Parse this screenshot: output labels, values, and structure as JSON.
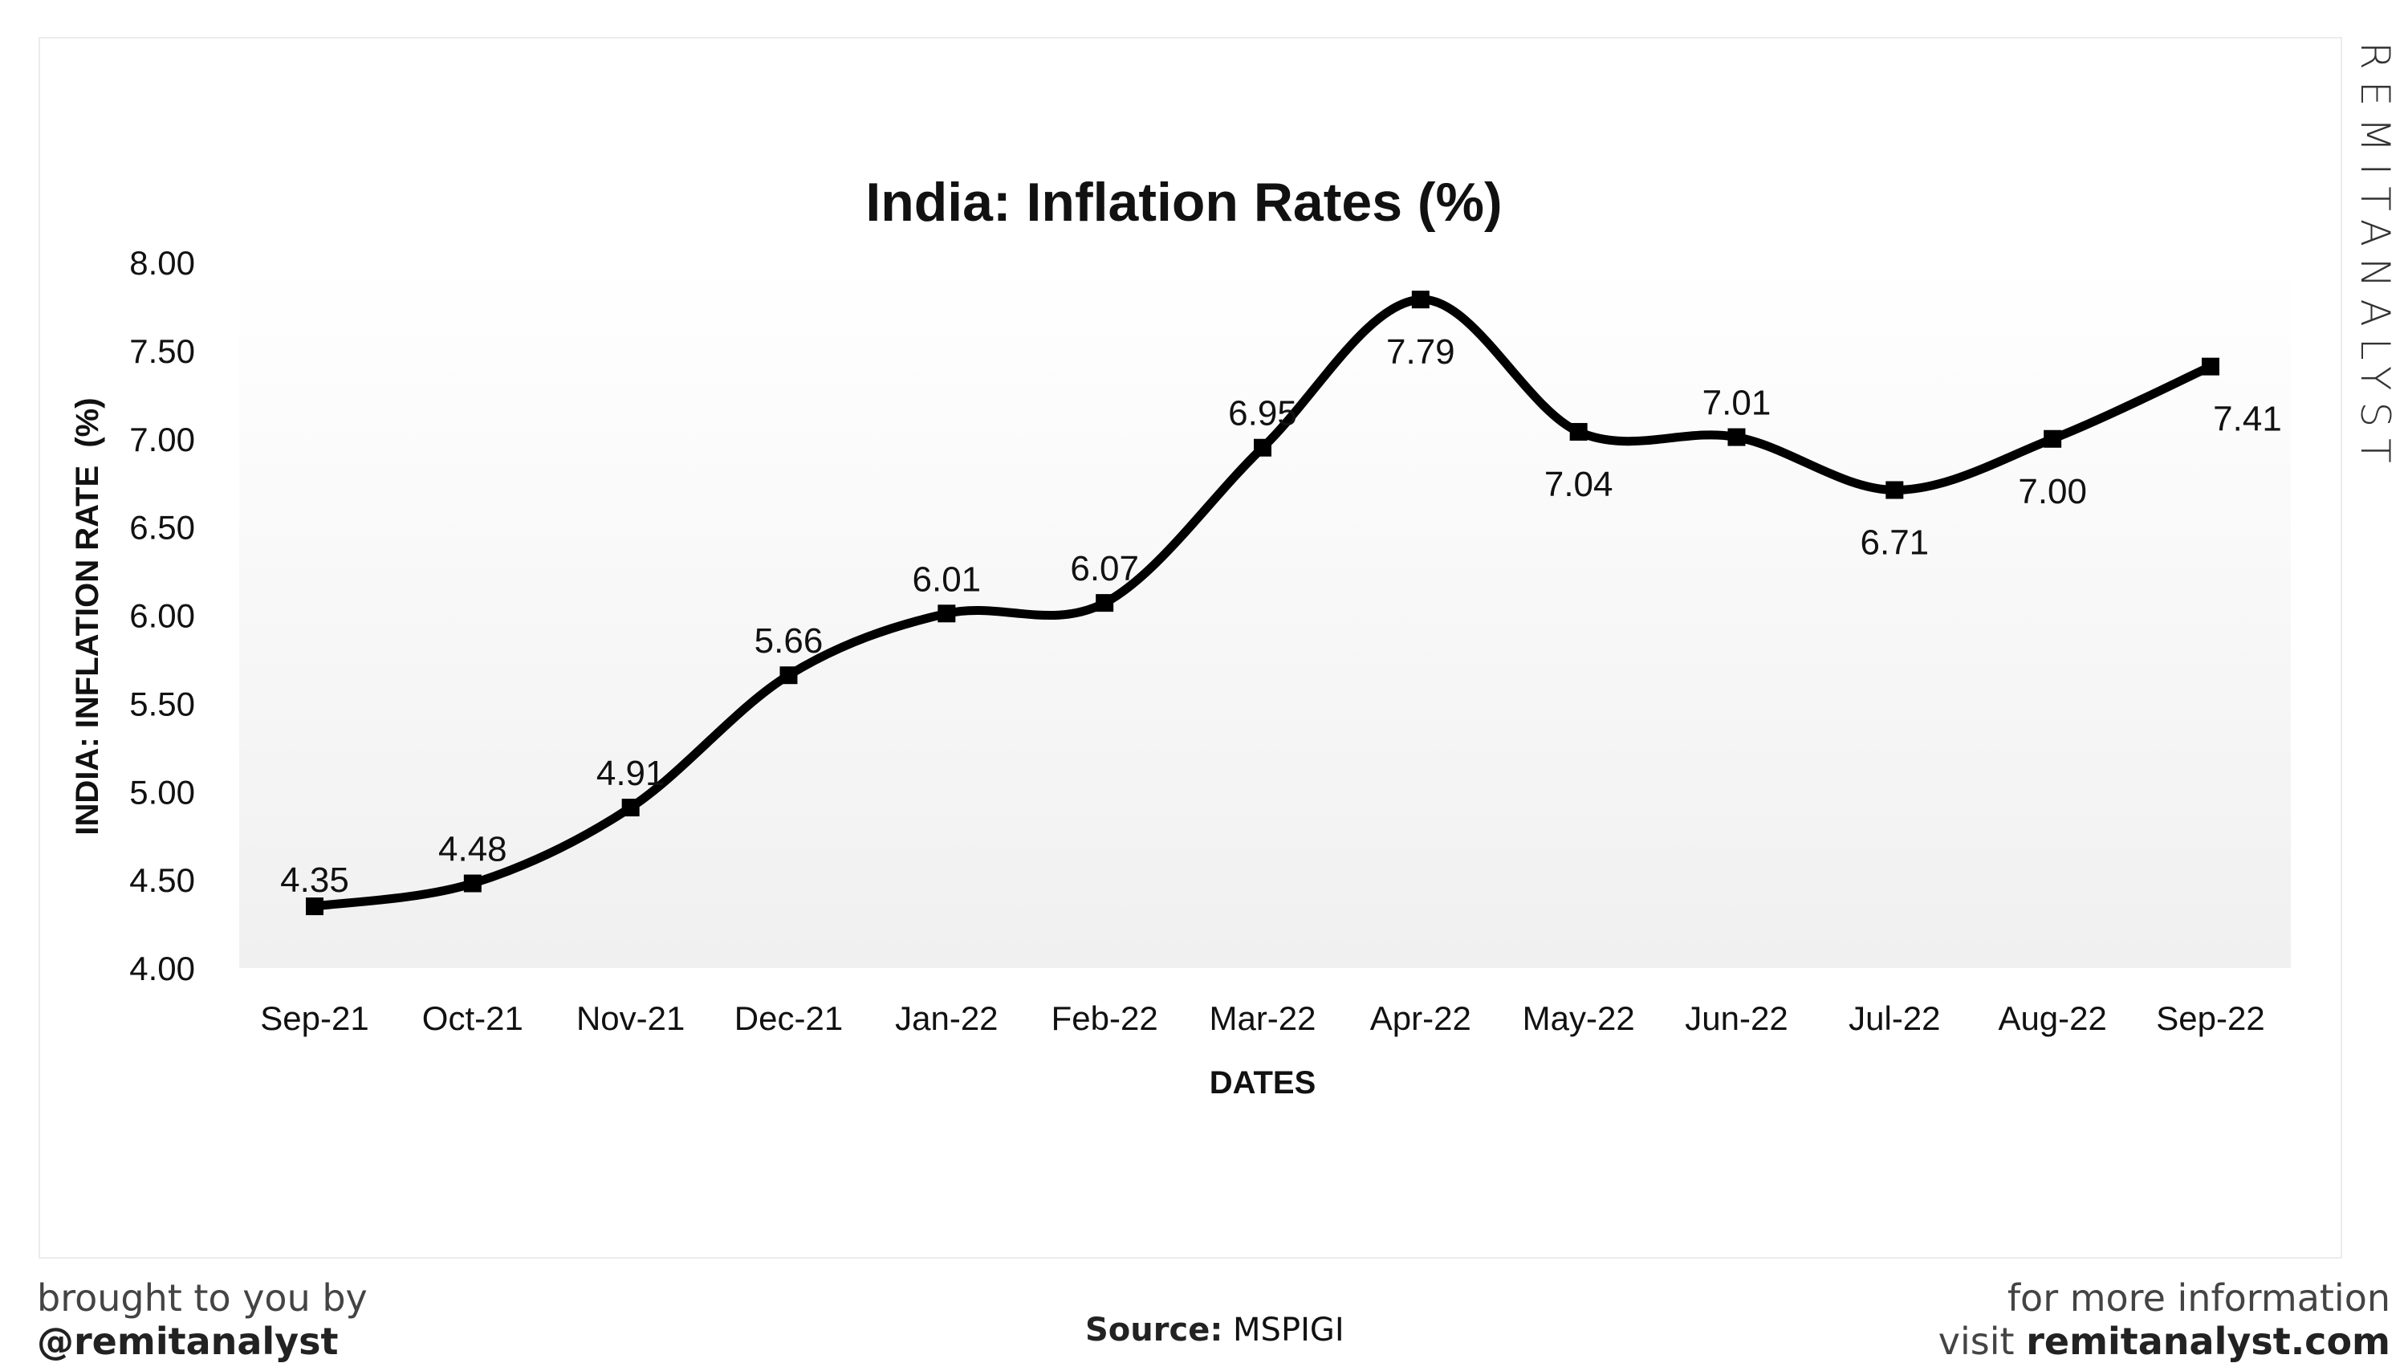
{
  "chart_data": {
    "type": "line",
    "title": "India: Inflation Rates (%)",
    "xlabel": "DATES",
    "ylabel": "INDIA: INFLATION RATE  (%)",
    "categories": [
      "Sep-21",
      "Oct-21",
      "Nov-21",
      "Dec-21",
      "Jan-22",
      "Feb-22",
      "Mar-22",
      "Apr-22",
      "May-22",
      "Jun-22",
      "Jul-22",
      "Aug-22",
      "Sep-22"
    ],
    "values": [
      4.35,
      4.48,
      4.91,
      5.66,
      6.01,
      6.07,
      6.95,
      7.79,
      7.04,
      7.01,
      6.71,
      7.0,
      7.41
    ],
    "data_labels": [
      "4.35",
      "4.48",
      "4.91",
      "5.66",
      "6.01",
      "6.07",
      "6.95",
      "7.79",
      "7.04",
      "7.01",
      "6.71",
      "7.00",
      "7.41"
    ],
    "yticks": [
      "4.00",
      "4.50",
      "5.00",
      "5.50",
      "6.00",
      "6.50",
      "7.00",
      "7.50",
      "8.00"
    ],
    "ylim": [
      4,
      8
    ],
    "grid": false,
    "smooth": true,
    "line_color": "#000000",
    "marker": "square"
  },
  "brand": "REMITANALYST",
  "footer": {
    "left_line1": "brought to you by",
    "left_line2": "@remitanalyst",
    "source_label": "Source:",
    "source_value": " MSPIGI",
    "right_line1": "for more information",
    "right_prefix": "visit ",
    "right_site": "remitanalyst.com"
  }
}
